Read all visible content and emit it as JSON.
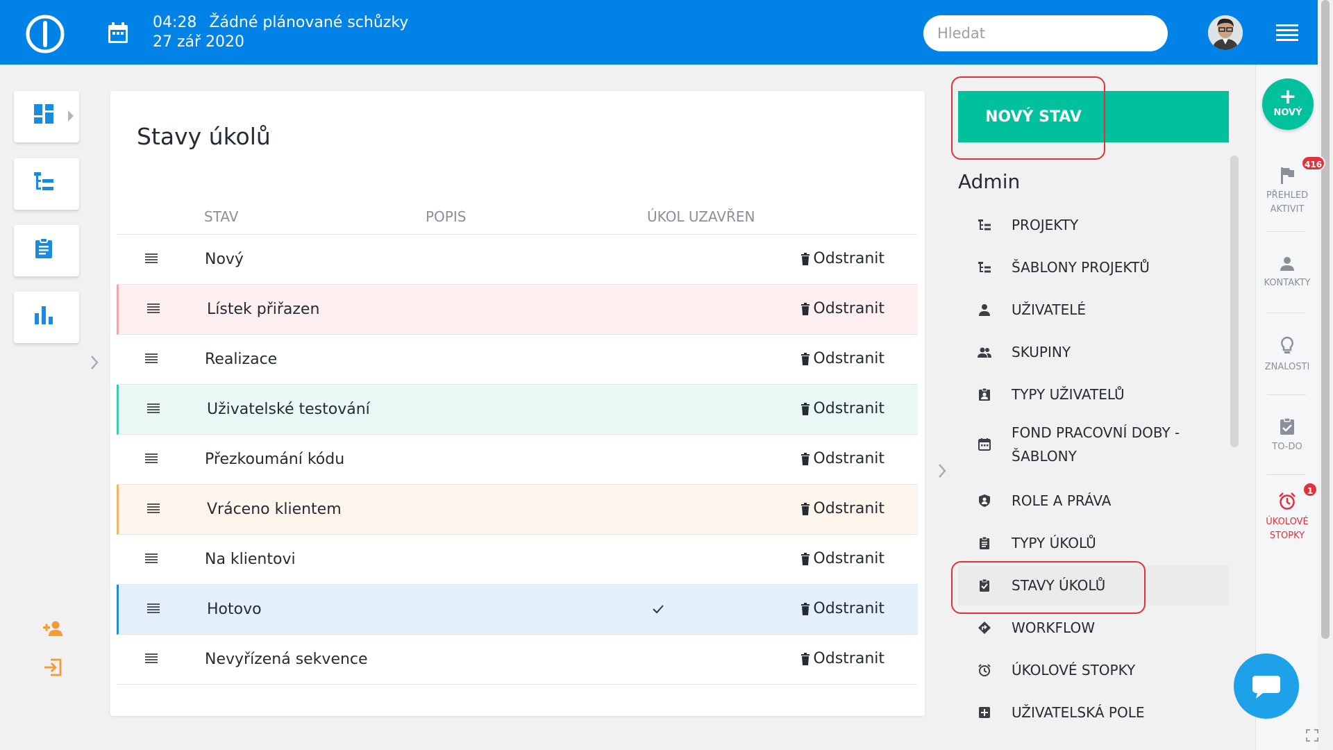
{
  "header": {
    "time": "04:28",
    "meetings": "Žádné plánované schůzky",
    "date": "27 zář 2020",
    "search_placeholder": "Hledat"
  },
  "main": {
    "title": "Stavy úkolů",
    "columns": [
      "STAV",
      "POPIS",
      "ÚKOL UZAVŘEN"
    ],
    "rows": [
      {
        "name": "Nový",
        "closed": false,
        "accent": null,
        "delete": "Odstranit"
      },
      {
        "name": "Lístek přiřazen",
        "closed": false,
        "accent": "#f2a5ad",
        "delete": "Odstranit"
      },
      {
        "name": "Realizace",
        "closed": false,
        "accent": null,
        "delete": "Odstranit"
      },
      {
        "name": "Uživatelské testování",
        "closed": false,
        "accent": "#3fc9b0",
        "delete": "Odstranit"
      },
      {
        "name": "Přezkoumání kódu",
        "closed": false,
        "accent": null,
        "delete": "Odstranit"
      },
      {
        "name": "Vráceno klientem",
        "closed": false,
        "accent": "#f7b26a",
        "delete": "Odstranit"
      },
      {
        "name": "Na klientovi",
        "closed": false,
        "accent": null,
        "delete": "Odstranit"
      },
      {
        "name": "Hotovo",
        "closed": true,
        "accent": "#2588dc",
        "delete": "Odstranit"
      },
      {
        "name": "Nevyřízená sekvence",
        "closed": false,
        "accent": null,
        "delete": "Odstranit"
      }
    ]
  },
  "admin": {
    "new_button": "NOVÝ STAV",
    "title": "Admin",
    "menu": [
      {
        "label": "PROJEKTY",
        "icon": "project-tree-icon",
        "active": false
      },
      {
        "label": "ŠABLONY PROJEKTŮ",
        "icon": "template-tree-icon",
        "active": false
      },
      {
        "label": "UŽIVATELÉ",
        "icon": "user-icon",
        "active": false
      },
      {
        "label": "SKUPINY",
        "icon": "group-icon",
        "active": false
      },
      {
        "label": "TYPY UŽIVATELŮ",
        "icon": "user-badge-icon",
        "active": false
      },
      {
        "label": "FOND PRACOVNÍ DOBY - ŠABLONY",
        "icon": "calendar-icon",
        "active": false
      },
      {
        "label": "ROLE A PRÁVA",
        "icon": "shield-icon",
        "active": false
      },
      {
        "label": "TYPY ÚKOLŮ",
        "icon": "clipboard-icon",
        "active": false
      },
      {
        "label": "STAVY ÚKOLŮ",
        "icon": "clipboard-check-icon",
        "active": true
      },
      {
        "label": "WORKFLOW",
        "icon": "workflow-icon",
        "active": false
      },
      {
        "label": "ÚKOLOVÉ STOPKY",
        "icon": "alarm-icon",
        "active": false
      },
      {
        "label": "UŽIVATELSKÁ POLE",
        "icon": "plus-box-icon",
        "active": false
      }
    ]
  },
  "right_sidebar": {
    "fab_label": "NOVÝ",
    "items": [
      {
        "label": "PŘEHLED AKTIVIT",
        "icon": "flag-icon",
        "badge": "416"
      },
      {
        "label": "KONTAKTY",
        "icon": "person-icon",
        "badge": null
      },
      {
        "label": "ZNALOSTI",
        "icon": "lightbulb-icon",
        "badge": null
      },
      {
        "label": "TO-DO",
        "icon": "todo-icon",
        "badge": null
      },
      {
        "label": "ÚKOLOVÉ STOPKY",
        "icon": "alarm-icon",
        "badge": "1"
      }
    ]
  },
  "colors": {
    "header": "#0082e6",
    "accent_green": "#00c19b",
    "icon_blue": "#1a8bde",
    "badge_red": "#e5303c",
    "orange": "#f39c33"
  }
}
